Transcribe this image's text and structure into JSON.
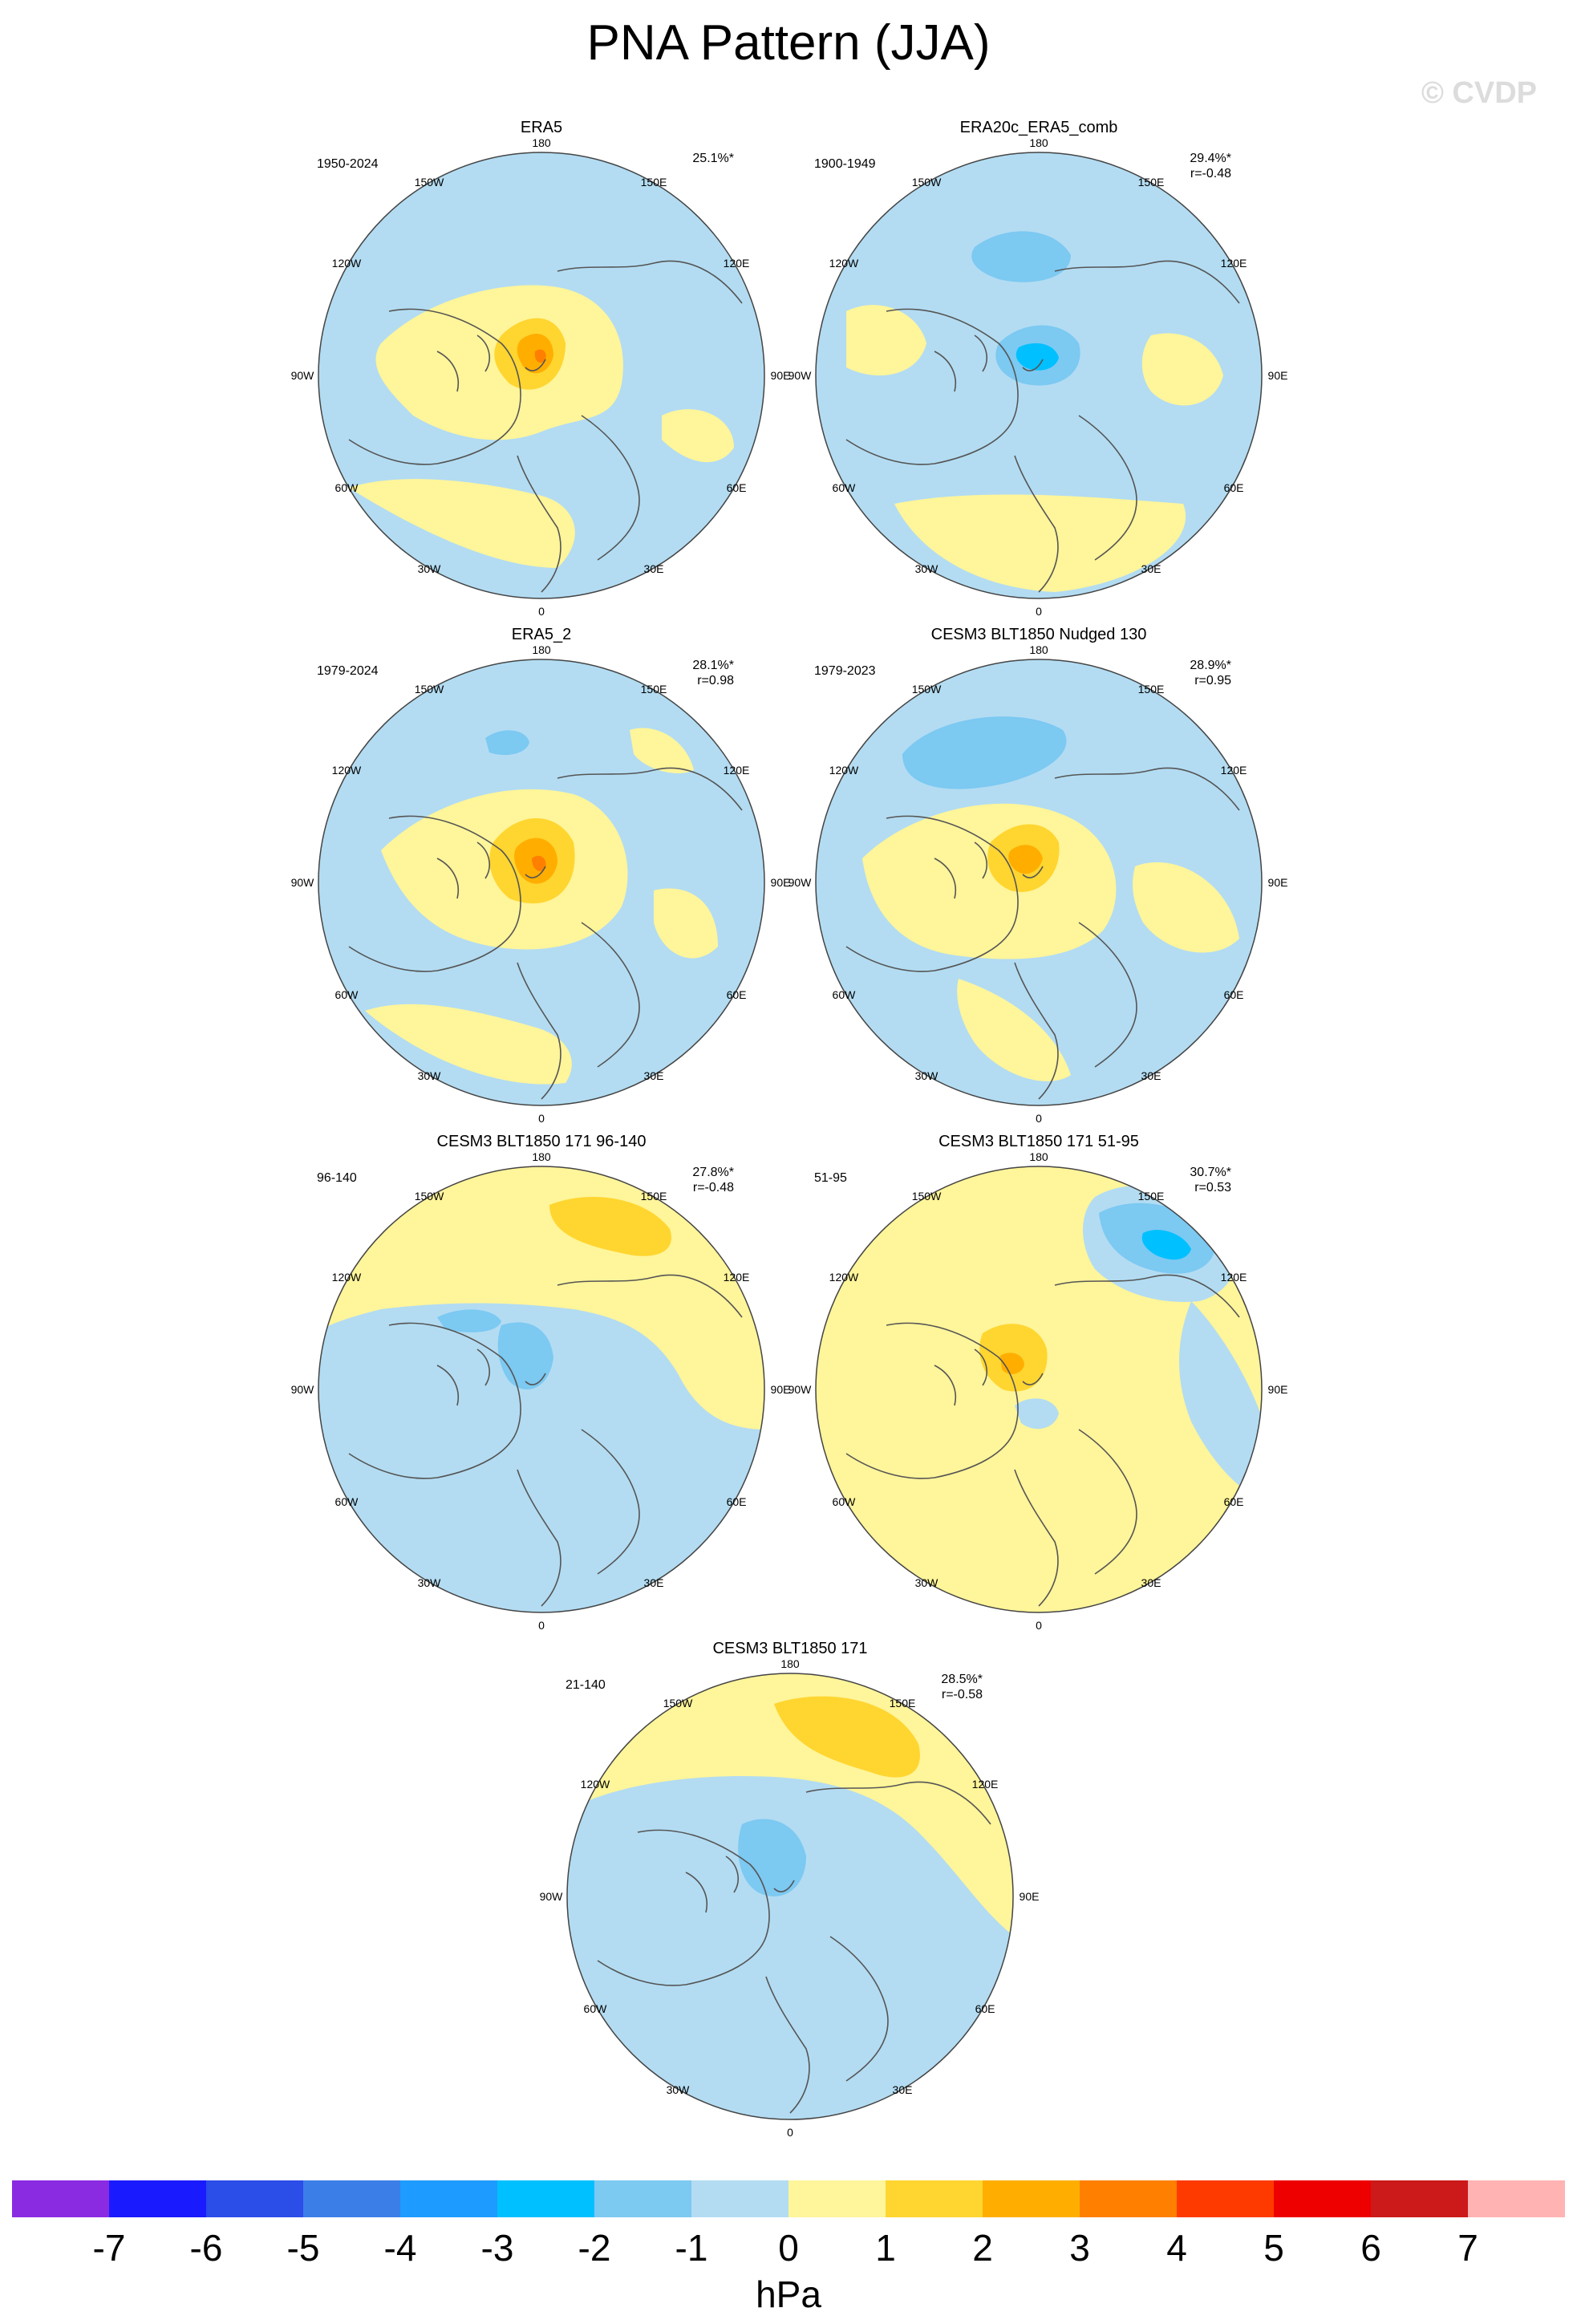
{
  "title": "PNA Pattern (JJA)",
  "watermark": "© CVDP",
  "lon_labels": {
    "n180": "180",
    "w150": "150W",
    "e150": "150E",
    "w120": "120W",
    "e120": "120E",
    "w90": "90W",
    "e90": "90E",
    "w60": "60W",
    "e60": "60E",
    "w30": "30W",
    "e30": "30E",
    "s0": "0"
  },
  "colors": {
    "ocean_base": "#b3dcf2",
    "levels": [
      "#8a2be2",
      "#1a1aff",
      "#2b4de8",
      "#3b7ee8",
      "#1e9bff",
      "#00c0ff",
      "#7cc9f2",
      "#b3dcf2",
      "#fff59a",
      "#ffd530",
      "#ffae00",
      "#ff7f00",
      "#ff3a00",
      "#ee0000",
      "#cc1a1a",
      "#ffb3b3"
    ]
  },
  "panels": [
    {
      "name": "ERA5",
      "period": "1950-2024",
      "pct": "25.1%*",
      "r": ""
    },
    {
      "name": "ERA20c_ERA5_comb",
      "period": "1900-1949",
      "pct": "29.4%*",
      "r": "r=-0.48"
    },
    {
      "name": "ERA5_2",
      "period": "1979-2024",
      "pct": "28.1%*",
      "r": "r=0.98"
    },
    {
      "name": "CESM3 BLT1850 Nudged 130",
      "period": "1979-2023",
      "pct": "28.9%*",
      "r": "r=0.95"
    },
    {
      "name": "CESM3 BLT1850 171 96-140",
      "period": "96-140",
      "pct": "27.8%*",
      "r": "r=-0.48"
    },
    {
      "name": "CESM3 BLT1850 171 51-95",
      "period": "51-95",
      "pct": "30.7%*",
      "r": "r=0.53"
    },
    {
      "name": "CESM3 BLT1850 171",
      "period": "21-140",
      "pct": "28.5%*",
      "r": "r=-0.58"
    }
  ],
  "colorbar": {
    "ticks": [
      "-7",
      "-6",
      "-5",
      "-4",
      "-3",
      "-2",
      "-1",
      "0",
      "1",
      "2",
      "3",
      "4",
      "5",
      "6",
      "7"
    ],
    "units": "hPa"
  }
}
